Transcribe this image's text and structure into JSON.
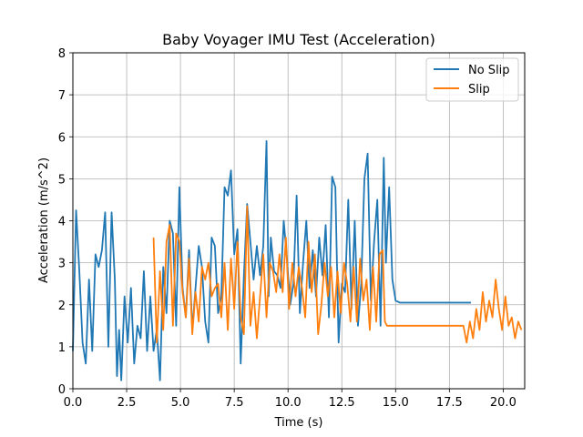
{
  "chart_data": {
    "type": "line",
    "title": "Baby Voyager IMU Test (Acceleration)",
    "xlabel": "Time (s)",
    "ylabel": "Acceleration (m/s^2)",
    "xlim": [
      0,
      21
    ],
    "ylim": [
      0,
      8
    ],
    "xticks": [
      0.0,
      2.5,
      5.0,
      7.5,
      10.0,
      12.5,
      15.0,
      17.5,
      20.0
    ],
    "xtick_labels": [
      "0.0",
      "2.5",
      "5.0",
      "7.5",
      "10.0",
      "12.5",
      "15.0",
      "17.5",
      "20.0"
    ],
    "yticks": [
      0,
      1,
      2,
      3,
      4,
      5,
      6,
      7,
      8
    ],
    "ytick_labels": [
      "0",
      "1",
      "2",
      "3",
      "4",
      "5",
      "6",
      "7",
      "8"
    ],
    "grid": true,
    "legend_position": "top-right",
    "series": [
      {
        "name": "No Slip",
        "color": "#1f77b4",
        "x": [
          0.0,
          0.15,
          0.3,
          0.45,
          0.6,
          0.75,
          0.9,
          1.05,
          1.2,
          1.35,
          1.5,
          1.65,
          1.8,
          1.95,
          2.05,
          2.15,
          2.25,
          2.4,
          2.55,
          2.7,
          2.85,
          3.0,
          3.15,
          3.3,
          3.45,
          3.6,
          3.75,
          3.9,
          4.05,
          4.2,
          4.35,
          4.5,
          4.65,
          4.8,
          4.95,
          5.1,
          5.25,
          5.4,
          5.55,
          5.7,
          5.85,
          6.0,
          6.15,
          6.3,
          6.45,
          6.6,
          6.75,
          6.9,
          7.05,
          7.2,
          7.35,
          7.5,
          7.65,
          7.8,
          7.95,
          8.1,
          8.25,
          8.4,
          8.55,
          8.7,
          8.85,
          9.0,
          9.1,
          9.2,
          9.35,
          9.5,
          9.65,
          9.8,
          9.95,
          10.1,
          10.25,
          10.4,
          10.55,
          10.7,
          10.85,
          11.0,
          11.15,
          11.3,
          11.45,
          11.6,
          11.75,
          11.9,
          12.05,
          12.2,
          12.35,
          12.5,
          12.65,
          12.8,
          12.95,
          13.1,
          13.25,
          13.4,
          13.55,
          13.7,
          13.85,
          14.0,
          14.15,
          14.3,
          14.45,
          14.55,
          14.7,
          14.85,
          15.0,
          15.2,
          15.5,
          15.8,
          16.1,
          16.4,
          16.7,
          17.0,
          17.3,
          17.6,
          17.9,
          18.2,
          18.5
        ],
        "y": [
          0.9,
          4.25,
          2.8,
          1.1,
          0.6,
          2.6,
          0.9,
          3.2,
          2.9,
          3.3,
          4.2,
          1.0,
          4.2,
          2.6,
          0.3,
          1.4,
          0.2,
          2.2,
          1.1,
          2.4,
          0.6,
          1.5,
          1.2,
          2.8,
          0.9,
          2.2,
          0.9,
          1.4,
          0.2,
          2.9,
          1.8,
          4.0,
          3.7,
          1.5,
          4.8,
          2.4,
          1.7,
          3.3,
          1.4,
          2.4,
          3.4,
          2.9,
          1.6,
          1.1,
          3.6,
          3.4,
          1.8,
          2.2,
          4.8,
          4.6,
          5.2,
          3.2,
          3.8,
          0.6,
          2.7,
          4.4,
          3.5,
          2.6,
          3.4,
          2.7,
          3.4,
          5.9,
          2.2,
          3.6,
          2.8,
          2.7,
          2.4,
          4.0,
          3.1,
          2.0,
          2.5,
          4.6,
          1.8,
          3.0,
          4.0,
          2.4,
          3.3,
          2.2,
          3.6,
          2.7,
          3.9,
          1.7,
          5.05,
          4.8,
          1.1,
          2.5,
          2.3,
          4.5,
          1.9,
          4.0,
          1.5,
          2.5,
          5.0,
          5.6,
          2.1,
          3.5,
          4.5,
          1.5,
          5.5,
          3.0,
          4.8,
          2.6,
          2.1,
          2.05,
          2.05,
          2.05,
          2.05,
          2.05,
          2.05,
          2.05,
          2.05,
          2.05,
          2.05,
          2.05,
          2.05
        ]
      },
      {
        "name": "Slip",
        "color": "#ff7f0e",
        "x": [
          3.75,
          3.9,
          4.05,
          4.2,
          4.35,
          4.5,
          4.65,
          4.8,
          4.95,
          5.1,
          5.25,
          5.4,
          5.55,
          5.7,
          5.85,
          6.0,
          6.15,
          6.3,
          6.45,
          6.6,
          6.75,
          6.9,
          7.05,
          7.2,
          7.35,
          7.5,
          7.65,
          7.8,
          7.95,
          8.1,
          8.25,
          8.4,
          8.55,
          8.7,
          8.85,
          9.0,
          9.15,
          9.3,
          9.45,
          9.6,
          9.75,
          9.9,
          10.05,
          10.2,
          10.35,
          10.5,
          10.65,
          10.8,
          10.95,
          11.1,
          11.25,
          11.4,
          11.55,
          11.7,
          11.85,
          12.0,
          12.15,
          12.3,
          12.45,
          12.6,
          12.75,
          12.9,
          13.05,
          13.2,
          13.35,
          13.5,
          13.65,
          13.8,
          13.95,
          14.1,
          14.25,
          14.4,
          14.5,
          14.6,
          14.75,
          14.9,
          15.1,
          15.4,
          15.7,
          16.0,
          16.3,
          16.6,
          16.9,
          17.2,
          17.5,
          17.8,
          18.0,
          18.15,
          18.3,
          18.45,
          18.6,
          18.75,
          18.9,
          19.05,
          19.2,
          19.35,
          19.5,
          19.65,
          19.8,
          19.95,
          20.1,
          20.25,
          20.4,
          20.55,
          20.7,
          20.85
        ],
        "y": [
          3.6,
          1.1,
          2.8,
          1.4,
          3.5,
          3.9,
          1.5,
          3.7,
          3.5,
          2.3,
          1.7,
          3.1,
          1.3,
          2.3,
          1.6,
          2.9,
          2.6,
          3.0,
          2.2,
          2.4,
          2.5,
          1.7,
          3.0,
          1.4,
          3.1,
          1.9,
          3.5,
          1.7,
          1.3,
          4.35,
          1.5,
          2.3,
          1.2,
          2.2,
          3.2,
          1.7,
          3.0,
          2.8,
          2.3,
          3.2,
          2.3,
          3.6,
          1.9,
          3.0,
          2.2,
          2.9,
          2.4,
          1.7,
          3.5,
          2.3,
          3.2,
          1.3,
          2.0,
          3.0,
          2.2,
          2.9,
          1.7,
          2.8,
          1.8,
          3.0,
          2.5,
          1.6,
          2.9,
          1.6,
          3.1,
          2.1,
          2.6,
          1.4,
          2.9,
          1.6,
          3.2,
          3.3,
          1.6,
          1.5,
          1.5,
          1.5,
          1.5,
          1.5,
          1.5,
          1.5,
          1.5,
          1.5,
          1.5,
          1.5,
          1.5,
          1.5,
          1.5,
          1.5,
          1.1,
          1.6,
          1.2,
          1.9,
          1.4,
          2.3,
          1.6,
          2.1,
          1.7,
          2.6,
          1.9,
          1.4,
          2.2,
          1.5,
          1.7,
          1.2,
          1.6,
          1.4
        ]
      }
    ]
  }
}
